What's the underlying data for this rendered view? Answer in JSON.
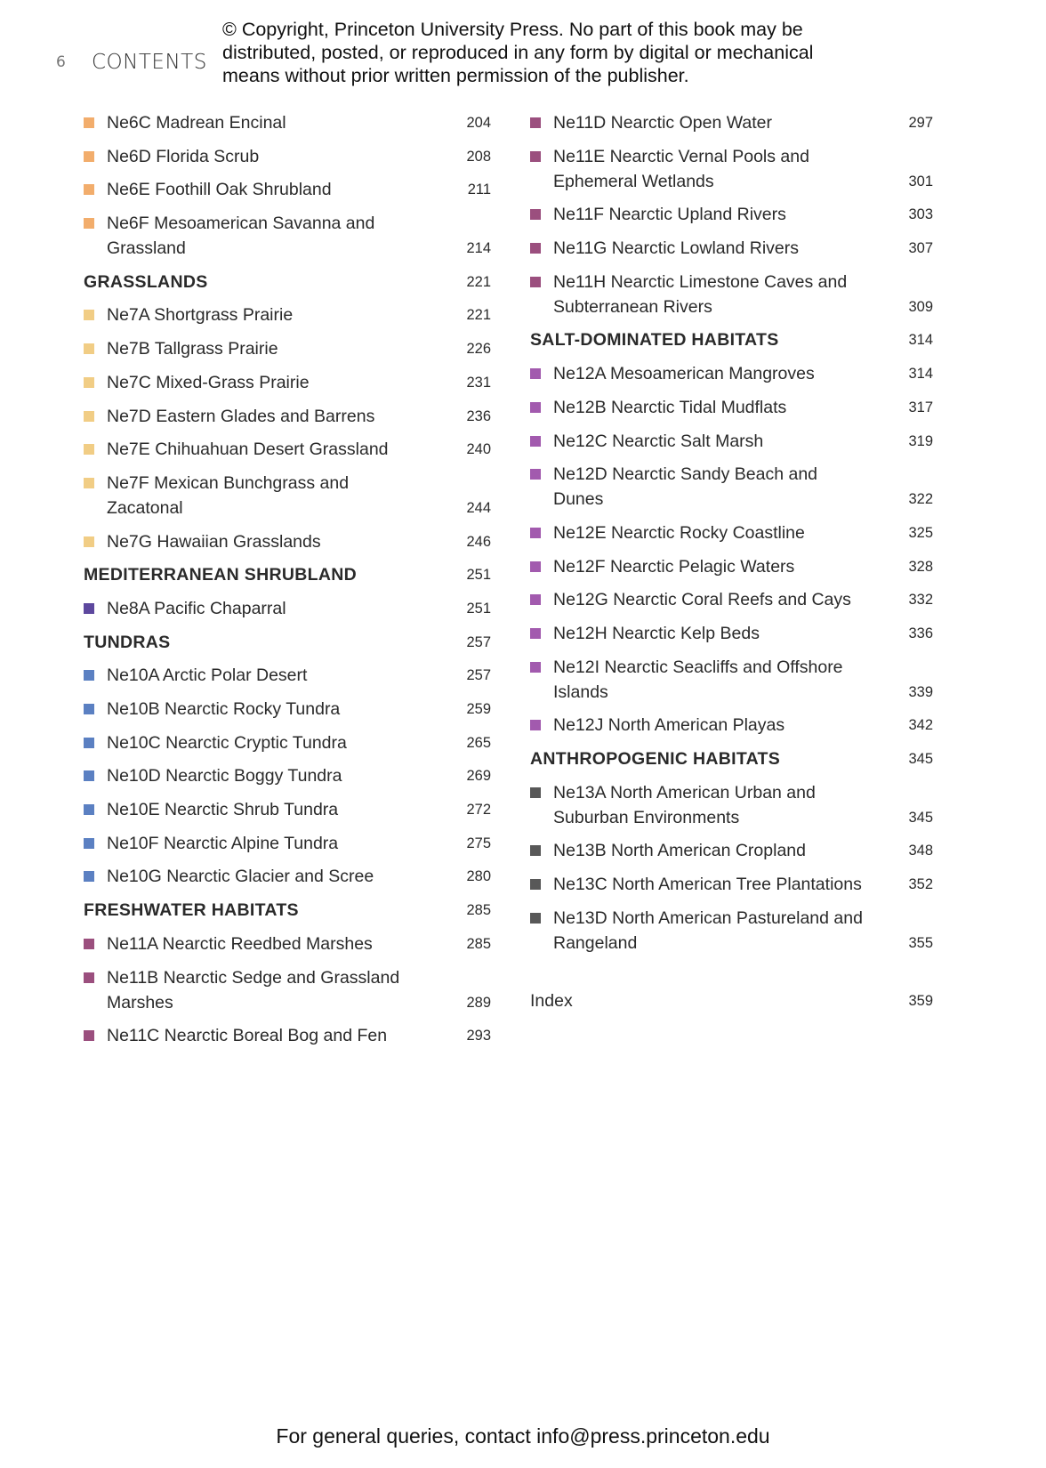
{
  "header": {
    "page_number": "6",
    "section_title": "CONTENTS",
    "copyright_lines": [
      "© Copyright, Princeton University Press. No part of this book may be",
      "distributed, posted, or reproduced in any form by digital or mechanical",
      "means without prior written permission of the publisher."
    ]
  },
  "colors": {
    "orange": "#f2ad6c",
    "yellow": "#f1cd85",
    "indigo": "#5d489e",
    "blue": "#5b80c2",
    "maroon": "#9b4f7e",
    "violet": "#a25aae",
    "gray": "#585858"
  },
  "left_column": [
    {
      "type": "entry",
      "text": "Ne6C Madrean Encinal",
      "page": "204",
      "color": "orange"
    },
    {
      "type": "entry",
      "text": "Ne6D Florida Scrub",
      "page": "208",
      "color": "orange"
    },
    {
      "type": "entry",
      "text": "Ne6E Foothill Oak Shrubland",
      "page": "211",
      "color": "orange"
    },
    {
      "type": "entry",
      "text": "Ne6F Mesoamerican Savanna and Grassland",
      "page": "214",
      "color": "orange"
    },
    {
      "type": "heading",
      "text": "GRASSLANDS",
      "page": "221"
    },
    {
      "type": "entry",
      "text": "Ne7A Shortgrass Prairie",
      "page": "221",
      "color": "yellow"
    },
    {
      "type": "entry",
      "text": "Ne7B Tallgrass Prairie",
      "page": "226",
      "color": "yellow"
    },
    {
      "type": "entry",
      "text": "Ne7C Mixed-Grass Prairie",
      "page": "231",
      "color": "yellow"
    },
    {
      "type": "entry",
      "text": "Ne7D Eastern Glades and Barrens",
      "page": "236",
      "color": "yellow"
    },
    {
      "type": "entry",
      "text": "Ne7E Chihuahuan Desert Grassland",
      "page": "240",
      "color": "yellow"
    },
    {
      "type": "entry",
      "text": "Ne7F Mexican Bunchgrass and Zacatonal",
      "page": "244",
      "color": "yellow"
    },
    {
      "type": "entry",
      "text": "Ne7G Hawaiian Grasslands",
      "page": "246",
      "color": "yellow"
    },
    {
      "type": "heading",
      "text": "MEDITERRANEAN SHRUBLAND",
      "page": "251"
    },
    {
      "type": "entry",
      "text": "Ne8A Pacific Chaparral",
      "page": "251",
      "color": "indigo"
    },
    {
      "type": "heading",
      "text": "TUNDRAS",
      "page": "257"
    },
    {
      "type": "entry",
      "text": "Ne10A Arctic Polar Desert",
      "page": "257",
      "color": "blue"
    },
    {
      "type": "entry",
      "text": "Ne10B Nearctic Rocky Tundra",
      "page": "259",
      "color": "blue"
    },
    {
      "type": "entry",
      "text": "Ne10C Nearctic Cryptic Tundra",
      "page": "265",
      "color": "blue"
    },
    {
      "type": "entry",
      "text": "Ne10D Nearctic Boggy Tundra",
      "page": "269",
      "color": "blue"
    },
    {
      "type": "entry",
      "text": "Ne10E Nearctic Shrub Tundra",
      "page": "272",
      "color": "blue"
    },
    {
      "type": "entry",
      "text": "Ne10F Nearctic Alpine Tundra",
      "page": "275",
      "color": "blue"
    },
    {
      "type": "entry",
      "text": "Ne10G Nearctic Glacier and Scree",
      "page": "280",
      "color": "blue"
    },
    {
      "type": "heading",
      "text": "FRESHWATER HABITATS",
      "page": "285"
    },
    {
      "type": "entry",
      "text": "Ne11A Nearctic Reedbed Marshes",
      "page": "285",
      "color": "maroon"
    },
    {
      "type": "entry",
      "text": "Ne11B Nearctic Sedge and Grassland Marshes",
      "page": "289",
      "color": "maroon"
    },
    {
      "type": "entry",
      "text": "Ne11C Nearctic Boreal Bog and Fen",
      "page": "293",
      "color": "maroon"
    }
  ],
  "right_column": [
    {
      "type": "entry",
      "text": "Ne11D Nearctic Open Water",
      "page": "297",
      "color": "maroon"
    },
    {
      "type": "entry",
      "text": "Ne11E Nearctic Vernal Pools and Ephemeral Wetlands",
      "page": "301",
      "color": "maroon"
    },
    {
      "type": "entry",
      "text": "Ne11F Nearctic Upland Rivers",
      "page": "303",
      "color": "maroon"
    },
    {
      "type": "entry",
      "text": "Ne11G Nearctic Lowland Rivers",
      "page": "307",
      "color": "maroon"
    },
    {
      "type": "entry",
      "text": "Ne11H Nearctic Limestone Caves and Subterranean Rivers",
      "page": "309",
      "color": "maroon"
    },
    {
      "type": "heading",
      "text": "SALT-DOMINATED HABITATS",
      "page": "314"
    },
    {
      "type": "entry",
      "text": "Ne12A Mesoamerican Mangroves",
      "page": "314",
      "color": "violet"
    },
    {
      "type": "entry",
      "text": "Ne12B Nearctic Tidal Mudflats",
      "page": "317",
      "color": "violet"
    },
    {
      "type": "entry",
      "text": "Ne12C Nearctic Salt Marsh",
      "page": "319",
      "color": "violet"
    },
    {
      "type": "entry",
      "text": "Ne12D Nearctic Sandy Beach and Dunes",
      "page": "322",
      "color": "violet"
    },
    {
      "type": "entry",
      "text": "Ne12E Nearctic Rocky Coastline",
      "page": "325",
      "color": "violet"
    },
    {
      "type": "entry",
      "text": "Ne12F Nearctic Pelagic Waters",
      "page": "328",
      "color": "violet"
    },
    {
      "type": "entry",
      "text": "Ne12G Nearctic Coral Reefs and Cays",
      "page": "332",
      "color": "violet"
    },
    {
      "type": "entry",
      "text": "Ne12H Nearctic Kelp Beds",
      "page": "336",
      "color": "violet"
    },
    {
      "type": "entry",
      "text": "Ne12I Nearctic Seacliffs and Offshore Islands",
      "page": "339",
      "color": "violet"
    },
    {
      "type": "entry",
      "text": "Ne12J North American Playas",
      "page": "342",
      "color": "violet"
    },
    {
      "type": "heading",
      "text": "ANTHROPOGENIC HABITATS",
      "page": "345"
    },
    {
      "type": "entry",
      "text": "Ne13A North American Urban and Suburban Environments",
      "page": "345",
      "color": "gray"
    },
    {
      "type": "entry",
      "text": "Ne13B North American Cropland",
      "page": "348",
      "color": "gray"
    },
    {
      "type": "entry",
      "text": "Ne13C North American Tree Plantations",
      "page": "352",
      "color": "gray"
    },
    {
      "type": "entry",
      "text": "Ne13D North American Pastureland and Rangeland",
      "page": "355",
      "color": "gray"
    },
    {
      "type": "plain",
      "text": "Index",
      "page": "359"
    }
  ],
  "footer": {
    "text": "For general queries, contact info@press.princeton.edu"
  }
}
